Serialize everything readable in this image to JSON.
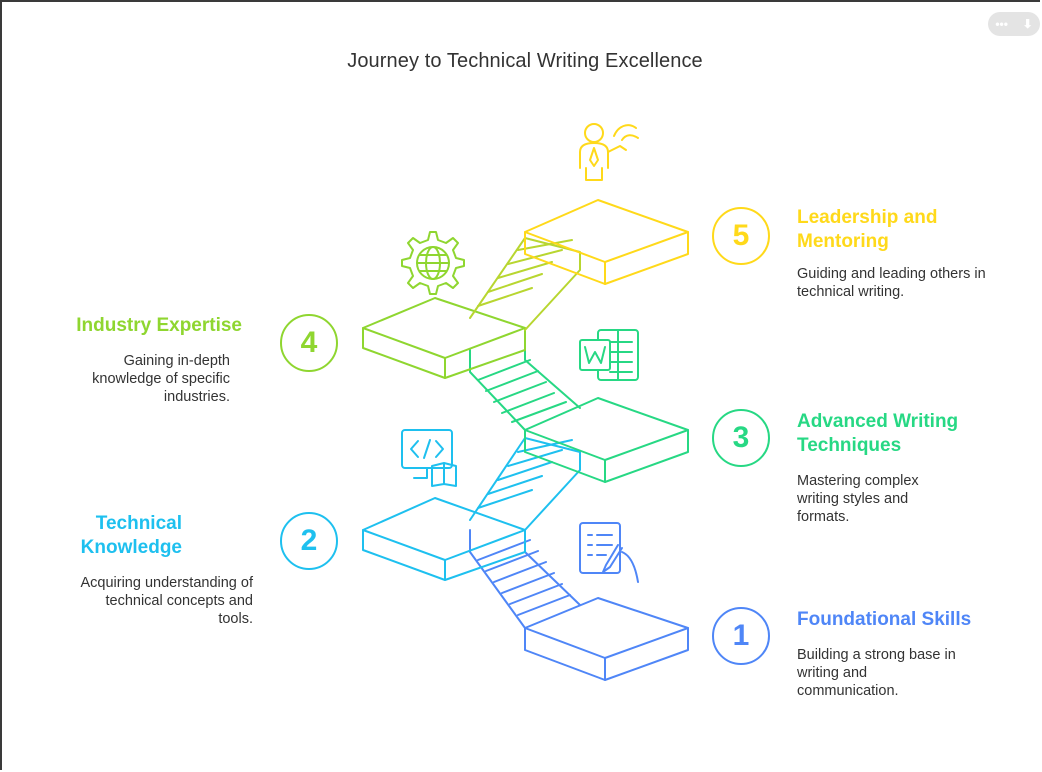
{
  "title": "Journey to Technical Writing Excellence",
  "toolbar": {
    "more_icon": "more-icon",
    "download_icon": "download-icon",
    "more_label": "•••",
    "download_label": "⬇"
  },
  "colors": {
    "step1": "#4f86f7",
    "step2": "#1ec0ef",
    "step3": "#27d884",
    "step4": "#8fd630",
    "step5": "#ffd91a"
  },
  "steps": [
    {
      "number": "1",
      "heading": "Foundational Skills",
      "description": "Building a strong base in writing and communication.",
      "icon": "checklist-writing-icon"
    },
    {
      "number": "2",
      "heading": "Technical Knowledge",
      "description": "Acquiring understanding of technical concepts and tools.",
      "icon": "code-book-icon"
    },
    {
      "number": "3",
      "heading": "Advanced Writing Techniques",
      "description": "Mastering complex writing styles and formats.",
      "icon": "word-document-icon"
    },
    {
      "number": "4",
      "heading": "Industry Expertise",
      "description": "Gaining in-depth knowledge of specific industries.",
      "icon": "gear-globe-icon"
    },
    {
      "number": "5",
      "heading": "Leadership and Mentoring",
      "description": "Guiding and leading others in technical writing.",
      "icon": "presenter-icon"
    }
  ]
}
